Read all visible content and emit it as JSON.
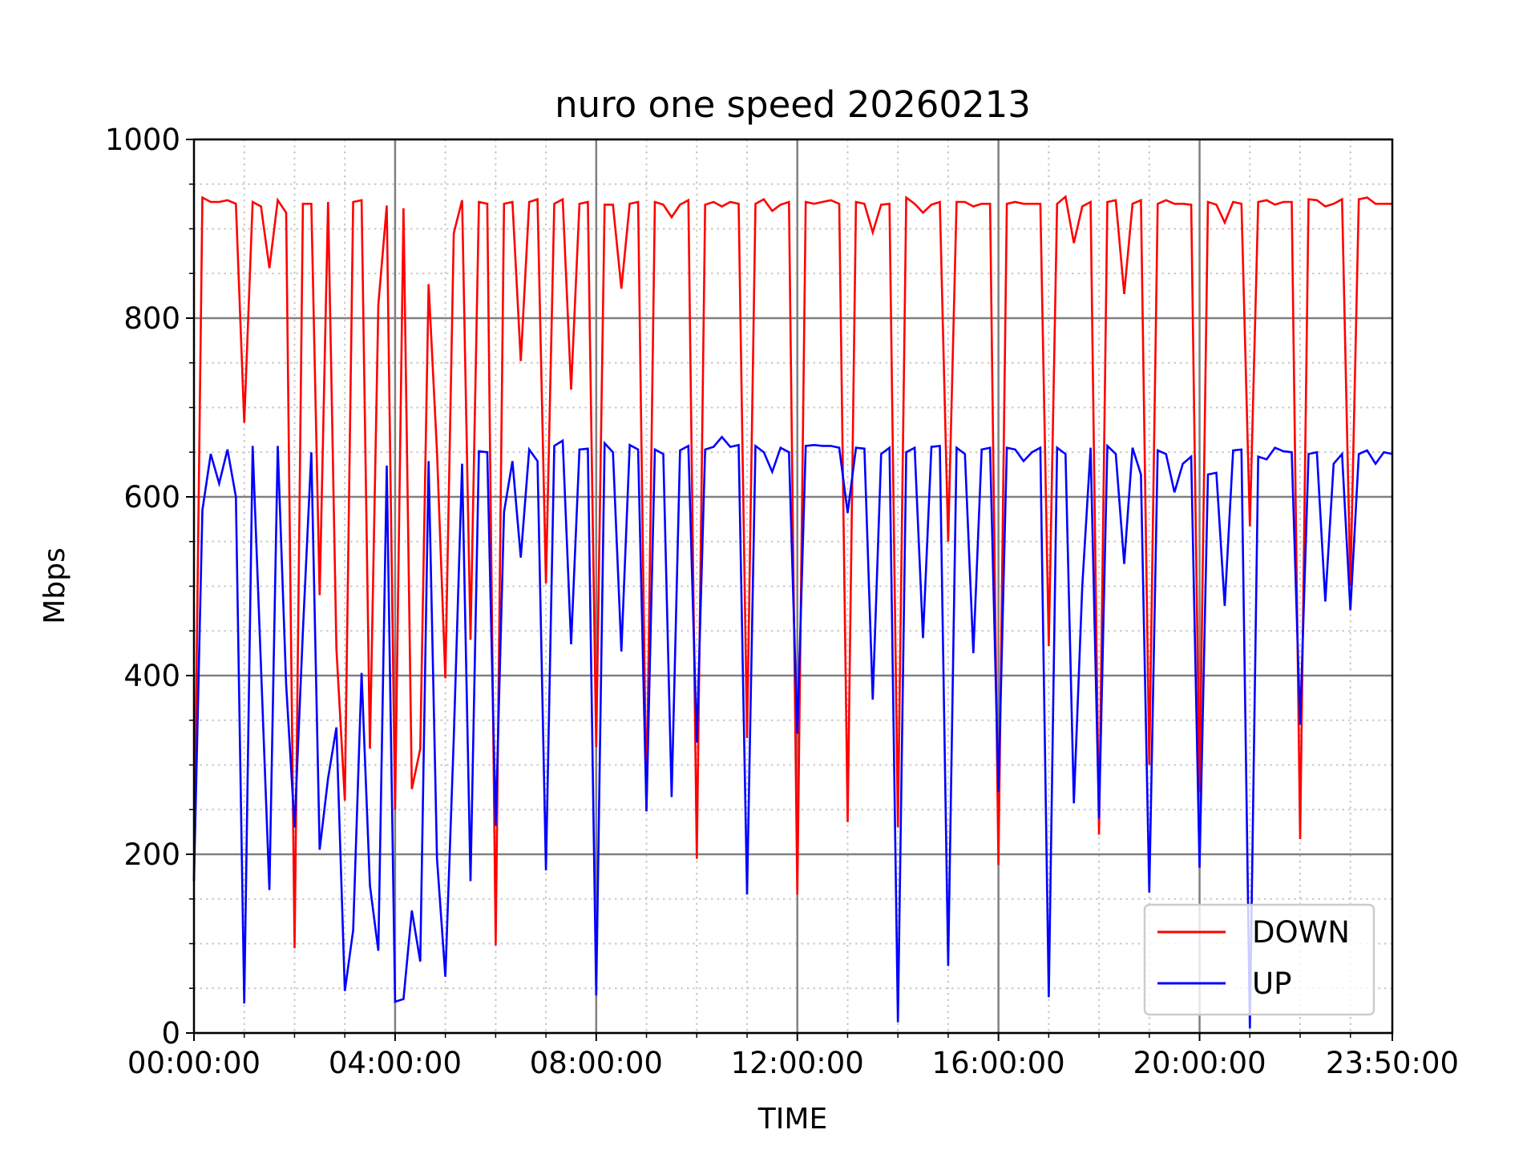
{
  "chart_data": {
    "type": "line",
    "title": "nuro one speed 20260213",
    "xlabel": "TIME",
    "ylabel": "Mbps",
    "x_interval_minutes": 10,
    "xlim_minutes": [
      0,
      1430
    ],
    "ylim": [
      0,
      1000
    ],
    "y_ticks": [
      0,
      200,
      400,
      600,
      800,
      1000
    ],
    "y_tick_labels": [
      "0",
      "200",
      "400",
      "600",
      "800",
      "1000"
    ],
    "y_minor_step": 50,
    "x_ticks_minutes": [
      0,
      240,
      480,
      720,
      960,
      1200,
      1430
    ],
    "x_tick_labels": [
      "00:00:00",
      "04:00:00",
      "08:00:00",
      "12:00:00",
      "16:00:00",
      "20:00:00",
      "23:50:00"
    ],
    "x_minor_step_minutes": 60,
    "grid": "major solid, minor dotted",
    "legend_placement": "lower-right",
    "series": [
      {
        "name": "DOWN",
        "color": "#ff0000",
        "values": [
          170,
          935,
          930,
          930,
          932,
          928,
          683,
          930,
          925,
          856,
          932,
          918,
          95,
          928,
          928,
          490,
          930,
          430,
          260,
          930,
          932,
          318,
          815,
          926,
          250,
          923,
          273,
          318,
          838,
          650,
          397,
          895,
          932,
          440,
          930,
          928,
          98,
          928,
          930,
          752,
          930,
          933,
          503,
          928,
          933,
          720,
          928,
          930,
          320,
          927,
          927,
          833,
          928,
          930,
          250,
          930,
          927,
          913,
          927,
          932,
          195,
          927,
          930,
          925,
          930,
          928,
          330,
          928,
          933,
          920,
          927,
          930,
          155,
          930,
          928,
          930,
          932,
          928,
          236,
          930,
          928,
          896,
          927,
          928,
          230,
          935,
          928,
          918,
          927,
          930,
          550,
          930,
          930,
          925,
          928,
          928,
          188,
          928,
          930,
          928,
          928,
          928,
          433,
          928,
          936,
          884,
          925,
          930,
          222,
          930,
          932,
          827,
          928,
          932,
          300,
          928,
          932,
          928,
          928,
          927,
          270,
          930,
          927,
          907,
          930,
          928,
          567,
          930,
          932,
          927,
          930,
          930,
          217,
          933,
          932,
          925,
          928,
          933,
          500,
          933,
          935,
          928,
          928,
          928
        ]
      },
      {
        "name": "UP",
        "color": "#0000ff",
        "values": [
          170,
          585,
          648,
          615,
          653,
          600,
          33,
          657,
          410,
          160,
          657,
          390,
          230,
          450,
          650,
          205,
          285,
          342,
          47,
          115,
          403,
          165,
          92,
          635,
          35,
          38,
          137,
          80,
          640,
          195,
          63,
          330,
          637,
          170,
          651,
          650,
          232,
          583,
          640,
          532,
          653,
          640,
          182,
          657,
          663,
          435,
          653,
          654,
          42,
          660,
          650,
          427,
          658,
          653,
          248,
          653,
          648,
          264,
          652,
          657,
          325,
          653,
          656,
          667,
          656,
          658,
          155,
          657,
          650,
          628,
          655,
          650,
          335,
          657,
          658,
          657,
          657,
          655,
          582,
          655,
          654,
          373,
          648,
          655,
          12,
          650,
          655,
          442,
          656,
          657,
          75,
          655,
          648,
          425,
          653,
          655,
          270,
          655,
          653,
          640,
          650,
          655,
          40,
          655,
          648,
          257,
          500,
          655,
          240,
          657,
          648,
          525,
          655,
          625,
          157,
          652,
          648,
          605,
          637,
          645,
          185,
          625,
          627,
          478,
          652,
          653,
          5,
          645,
          642,
          655,
          651,
          650,
          345,
          648,
          650,
          483,
          637,
          648,
          473,
          648,
          652,
          637,
          650,
          648
        ]
      }
    ]
  }
}
